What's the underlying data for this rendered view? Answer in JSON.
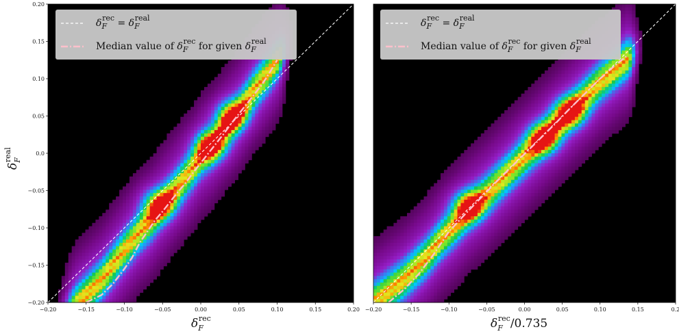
{
  "chart_data": [
    {
      "type": "heatmap",
      "title": "",
      "xlabel": "δ_F^rec",
      "ylabel": "δ_F^real",
      "xlim": [
        -0.2,
        0.2
      ],
      "ylim": [
        -0.2,
        0.2
      ],
      "x_ticks": [
        "−0.20",
        "−0.15",
        "−0.10",
        "−0.05",
        "0.00",
        "0.05",
        "0.10",
        "0.15",
        "0.20"
      ],
      "y_ticks": [
        "0.20",
        "0.15",
        "0.10",
        "0.05",
        "0.0",
        "−0.05",
        "−0.10",
        "−0.15",
        "−0.20"
      ],
      "density_ridge": {
        "x": [
          -0.16,
          -0.13,
          -0.1,
          -0.08,
          -0.065,
          -0.05,
          -0.03,
          -0.01,
          0.0,
          0.015,
          0.03,
          0.05,
          0.07,
          0.09,
          0.1
        ],
        "y": [
          -0.2,
          -0.17,
          -0.13,
          -0.105,
          -0.09,
          -0.07,
          -0.045,
          -0.02,
          -0.005,
          0.01,
          0.03,
          0.055,
          0.085,
          0.11,
          0.125
        ]
      },
      "peaks": [
        [
          -0.055,
          -0.068
        ],
        [
          0.013,
          0.01
        ],
        [
          0.04,
          0.05
        ]
      ],
      "series": [
        {
          "line_style": "dashed",
          "color": "#ffffff",
          "x": [
            -0.2,
            0.2
          ],
          "y": [
            -0.2,
            0.2
          ]
        },
        {
          "line_style": "dash-dot",
          "color": "#ffc0cb",
          "x": [
            -0.15,
            -0.13,
            -0.115,
            -0.1,
            -0.09,
            -0.08,
            -0.07,
            -0.06,
            -0.05,
            -0.04,
            -0.03,
            -0.02,
            -0.01,
            0.0,
            0.01,
            0.02,
            0.03,
            0.04,
            0.05,
            0.06,
            0.07,
            0.08,
            0.09,
            0.1
          ],
          "y": [
            -0.2,
            -0.19,
            -0.175,
            -0.155,
            -0.14,
            -0.12,
            -0.105,
            -0.09,
            -0.078,
            -0.065,
            -0.052,
            -0.04,
            -0.026,
            -0.013,
            0.0,
            0.013,
            0.026,
            0.04,
            0.053,
            0.066,
            0.079,
            0.092,
            0.108,
            0.125
          ]
        }
      ],
      "legend": {
        "placement": "top-left",
        "entries": [
          {
            "a": "δ",
            "a_sub": "F",
            "a_sup": "rec",
            "eq": " = ",
            "b": "δ",
            "b_sub": "F",
            "b_sup": "real"
          },
          {
            "prefix": "Median value of ",
            "a": "δ",
            "a_sub": "F",
            "a_sup": "rec",
            "mid": " for given ",
            "b": "δ",
            "b_sub": "F",
            "b_sup": "real"
          }
        ]
      }
    },
    {
      "type": "heatmap",
      "title": "",
      "xlabel": "δ_F^rec/0.735",
      "ylabel": "",
      "xlim": [
        -0.2,
        0.2
      ],
      "ylim": [
        -0.2,
        0.2
      ],
      "x_ticks": [
        "−0.20",
        "−0.15",
        "−0.10",
        "−0.05",
        "0.00",
        "0.05",
        "0.10",
        "0.15",
        "0.2"
      ],
      "density_ridge": {
        "x": [
          -0.2,
          -0.16,
          -0.13,
          -0.11,
          -0.09,
          -0.075,
          -0.05,
          -0.02,
          0.0,
          0.025,
          0.05,
          0.08,
          0.1,
          0.12,
          0.135
        ],
        "y": [
          -0.2,
          -0.17,
          -0.14,
          -0.115,
          -0.095,
          -0.078,
          -0.055,
          -0.025,
          -0.005,
          0.02,
          0.045,
          0.075,
          0.095,
          0.112,
          0.125
        ]
      },
      "peaks": [
        [
          -0.075,
          -0.07
        ],
        [
          0.025,
          0.02
        ],
        [
          0.06,
          0.055
        ]
      ],
      "series": [
        {
          "line_style": "dashed",
          "color": "#ffffff",
          "x": [
            -0.2,
            0.2
          ],
          "y": [
            -0.2,
            0.2
          ]
        },
        {
          "line_style": "dash-dot",
          "color": "#ffc0cb",
          "x": [
            -0.18,
            -0.16,
            -0.14,
            -0.12,
            -0.1,
            -0.08,
            -0.06,
            -0.04,
            -0.02,
            0.0,
            0.02,
            0.04,
            0.06,
            0.08,
            0.1,
            0.12,
            0.135
          ],
          "y": [
            -0.2,
            -0.183,
            -0.162,
            -0.135,
            -0.105,
            -0.083,
            -0.062,
            -0.041,
            -0.021,
            -0.001,
            0.019,
            0.039,
            0.06,
            0.08,
            0.1,
            0.118,
            0.13
          ]
        }
      ],
      "legend": {
        "placement": "top-left",
        "entries": [
          {
            "a": "δ",
            "a_sub": "F",
            "a_sup": "rec",
            "eq": " = ",
            "b": "δ",
            "b_sub": "F",
            "b_sup": "real"
          },
          {
            "prefix": "Median value of ",
            "a": "δ",
            "a_sub": "F",
            "a_sup": "rec",
            "mid": " for given ",
            "b": "δ",
            "b_sub": "F",
            "b_sup": "real"
          }
        ]
      }
    }
  ],
  "labels": {
    "left_xlabel": {
      "main": "δ",
      "sub": "F",
      "sup": "rec"
    },
    "right_xlabel": {
      "main": "δ",
      "sub": "F",
      "sup": "rec",
      "suffix": "/0.735"
    },
    "ylabel": {
      "main": "δ",
      "sub": "F",
      "sup": "real"
    }
  }
}
